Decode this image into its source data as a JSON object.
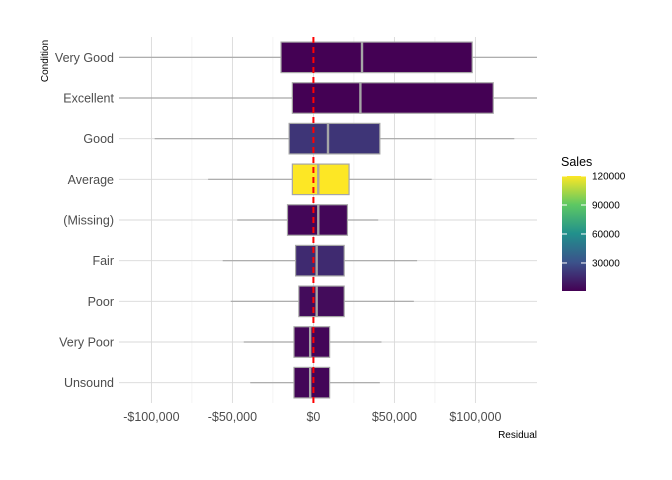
{
  "chart_data": {
    "type": "boxplot",
    "xlabel": "Residual",
    "ylabel": "Condition",
    "xlim": [
      -120000,
      138000
    ],
    "x_ticks": [
      -100000,
      -50000,
      0,
      50000,
      100000
    ],
    "x_tick_labels": [
      "-$100,000",
      "-$50,000",
      "$0",
      "$50,000",
      "$100,000"
    ],
    "reference_line": {
      "x": 0,
      "color": "#ff0000",
      "style": "dashed"
    },
    "grid": true,
    "categories": [
      "Very Good",
      "Excellent",
      "Good",
      "Average",
      "(Missing)",
      "Fair",
      "Poor",
      "Very Poor",
      "Unsound"
    ],
    "boxes": [
      {
        "category": "Very Good",
        "whisker_low": -120000,
        "q1": -20000,
        "median": 30000,
        "q3": 98000,
        "whisker_high": 138000,
        "sales": 1000
      },
      {
        "category": "Excellent",
        "whisker_low": -120000,
        "q1": -13000,
        "median": 29000,
        "q3": 111000,
        "whisker_high": 138000,
        "sales": 1000
      },
      {
        "category": "Good",
        "whisker_low": -98000,
        "q1": -15000,
        "median": 9000,
        "q3": 41000,
        "whisker_high": 124000,
        "sales": 20000
      },
      {
        "category": "Average",
        "whisker_low": -65000,
        "q1": -13000,
        "median": 3000,
        "q3": 22000,
        "whisker_high": 73000,
        "sales": 120000
      },
      {
        "category": "(Missing)",
        "whisker_low": -47000,
        "q1": -16000,
        "median": 3000,
        "q3": 21000,
        "whisker_high": 40000,
        "sales": 3000
      },
      {
        "category": "Fair",
        "whisker_low": -56000,
        "q1": -11000,
        "median": 2000,
        "q3": 19000,
        "whisker_high": 64000,
        "sales": 16000
      },
      {
        "category": "Poor",
        "whisker_low": -51000,
        "q1": -9000,
        "median": 2000,
        "q3": 19000,
        "whisker_high": 62000,
        "sales": 5000
      },
      {
        "category": "Very Poor",
        "whisker_low": -43000,
        "q1": -12000,
        "median": -2000,
        "q3": 10000,
        "whisker_high": 42000,
        "sales": 3000
      },
      {
        "category": "Unsound",
        "whisker_low": -39000,
        "q1": -12000,
        "median": -2000,
        "q3": 10000,
        "whisker_high": 41000,
        "sales": 3000
      }
    ],
    "legend": {
      "title": "Sales",
      "placement": "right",
      "range": [
        1000,
        120000
      ],
      "ticks": [
        30000,
        60000,
        90000,
        120000
      ],
      "tick_labels": [
        "30000",
        "60000",
        "90000",
        "120000"
      ],
      "colors": [
        "#440154",
        "#3b528b",
        "#21908c",
        "#5dc863",
        "#fde725"
      ]
    }
  }
}
